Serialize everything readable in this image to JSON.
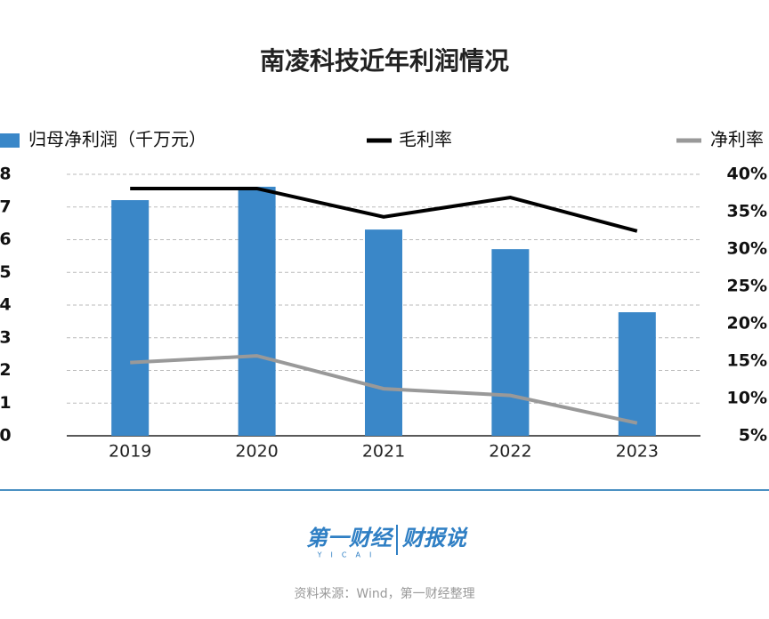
{
  "chart_data": {
    "type": "bar",
    "title": "南凌科技近年利润情况",
    "categories": [
      "2019",
      "2020",
      "2021",
      "2022",
      "2023"
    ],
    "series": [
      {
        "name": "归母净利润（千万元）",
        "color": "#3a87c8",
        "type": "bar",
        "values": [
          7.21,
          7.62,
          6.31,
          5.71,
          3.78
        ]
      },
      {
        "name": "毛利率",
        "color": "#000000",
        "type": "line",
        "axis": "y2",
        "values": [
          38.1,
          38.1,
          34.3,
          36.9,
          32.4
        ]
      },
      {
        "name": "净利率",
        "color": "#999999",
        "type": "line",
        "axis": "y2",
        "values": [
          14.8,
          15.7,
          11.3,
          10.4,
          6.7
        ]
      }
    ],
    "ylim": [
      0,
      8
    ],
    "yticks": [
      0,
      1,
      2,
      3,
      4,
      5,
      6,
      7,
      8
    ],
    "y2lim": [
      5,
      40
    ],
    "y2ticks": [
      {
        "value": 5,
        "label": "5%"
      },
      {
        "value": 10,
        "label": "10%"
      },
      {
        "value": 15,
        "label": "15%"
      },
      {
        "value": 20,
        "label": "20%"
      },
      {
        "value": 25,
        "label": "25%"
      },
      {
        "value": 30,
        "label": "30%"
      },
      {
        "value": 35,
        "label": "35%"
      },
      {
        "value": 40,
        "label": "40%"
      }
    ],
    "grid": true,
    "legend": "top"
  },
  "footer": {
    "logo": "第一财经",
    "logo_sub": "YICAI",
    "logo_right": "财报说",
    "source": "资料来源：Wind，第一财经整理"
  }
}
